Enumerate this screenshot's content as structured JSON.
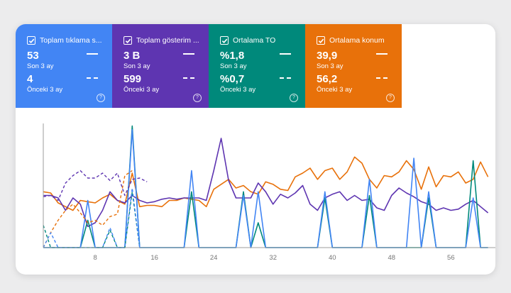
{
  "cards": [
    {
      "title": "Toplam tıklama s...",
      "current_value": "53",
      "current_period": "Son 3 ay",
      "previous_value": "4",
      "previous_period": "Önceki 3 ay",
      "color": "#4285f4"
    },
    {
      "title": "Toplam gösterim ...",
      "current_value": "3 B",
      "current_period": "Son 3 ay",
      "previous_value": "599",
      "previous_period": "Önceki 3 ay",
      "color": "#5e35b1"
    },
    {
      "title": "Ortalama TO",
      "current_value": "%1,8",
      "current_period": "Son 3 ay",
      "previous_value": "%0,7",
      "previous_period": "Önceki 3 ay",
      "color": "#00897b"
    },
    {
      "title": "Ortalama konum",
      "current_value": "39,9",
      "current_period": "Son 3 ay",
      "previous_value": "56,2",
      "previous_period": "Önceki 3 ay",
      "color": "#e8710a"
    }
  ],
  "help_glyph": "?",
  "chart_data": {
    "type": "line",
    "x_ticks": [
      "8",
      "16",
      "24",
      "32",
      "40",
      "48",
      "56"
    ],
    "x_range": [
      1,
      62
    ],
    "y_range": [
      0,
      100
    ],
    "series": [
      {
        "metric": "position",
        "style": "solid",
        "color": "#e8710a",
        "x_start": 1,
        "values": [
          45,
          44,
          36,
          33,
          30,
          38,
          37,
          36,
          40,
          43,
          38,
          35,
          60,
          33,
          34,
          34,
          33,
          38,
          38,
          40,
          39,
          38,
          33,
          47,
          51,
          55,
          48,
          50,
          45,
          43,
          53,
          51,
          47,
          46,
          57,
          60,
          64,
          55,
          62,
          64,
          55,
          61,
          73,
          68,
          55,
          48,
          58,
          57,
          61,
          70,
          63,
          47,
          65,
          49,
          58,
          57,
          61,
          52,
          55,
          69,
          57
        ]
      },
      {
        "metric": "impressions",
        "style": "solid",
        "color": "#5e35b1",
        "x_start": 1,
        "values": [
          42,
          42,
          40,
          30,
          40,
          35,
          17,
          20,
          30,
          45,
          38,
          36,
          42,
          38,
          36,
          37,
          39,
          40,
          39,
          40,
          40,
          40,
          38,
          62,
          88,
          54,
          40,
          40,
          40,
          52,
          45,
          35,
          43,
          40,
          44,
          50,
          35,
          30,
          40,
          43,
          45,
          38,
          42,
          38,
          39,
          32,
          30,
          42,
          48,
          44,
          41,
          37,
          35,
          30,
          32,
          30,
          31,
          35,
          38,
          33,
          28
        ]
      },
      {
        "metric": "ctr",
        "style": "solid",
        "color": "#00897b",
        "x_start": 1,
        "values": [
          0,
          0,
          0,
          0,
          0,
          0,
          22,
          0,
          0,
          0,
          0,
          0,
          98,
          0,
          0,
          0,
          0,
          0,
          0,
          0,
          45,
          0,
          0,
          0,
          0,
          0,
          0,
          45,
          0,
          20,
          0,
          0,
          0,
          0,
          0,
          0,
          0,
          0,
          40,
          0,
          0,
          0,
          0,
          0,
          42,
          0,
          0,
          0,
          0,
          0,
          0,
          0,
          40,
          0,
          0,
          0,
          0,
          0,
          70,
          0,
          0
        ]
      },
      {
        "metric": "clicks",
        "style": "solid",
        "color": "#4285f4",
        "x_start": 1,
        "values": [
          0,
          0,
          0,
          0,
          0,
          0,
          38,
          0,
          0,
          0,
          0,
          0,
          95,
          0,
          0,
          0,
          0,
          0,
          0,
          0,
          62,
          0,
          0,
          0,
          0,
          0,
          0,
          42,
          0,
          45,
          0,
          0,
          0,
          0,
          0,
          0,
          0,
          0,
          45,
          0,
          0,
          0,
          0,
          0,
          55,
          0,
          0,
          0,
          0,
          0,
          72,
          0,
          45,
          0,
          0,
          0,
          0,
          0,
          40,
          0,
          0
        ]
      },
      {
        "metric": "position",
        "style": "dashed",
        "color": "#e8710a",
        "x_start": 1,
        "values": [
          0,
          12,
          22,
          30,
          35,
          28,
          20,
          22,
          18,
          25,
          27,
          58,
          62
        ]
      },
      {
        "metric": "impressions",
        "style": "dashed",
        "color": "#5e35b1",
        "x_start": 1,
        "values": [
          41,
          42,
          38,
          52,
          58,
          62,
          56,
          56,
          60,
          54,
          60,
          42,
          55,
          56,
          53
        ]
      },
      {
        "metric": "ctr",
        "style": "dashed",
        "color": "#00897b",
        "x_start": 1,
        "values": [
          18,
          0,
          0,
          0,
          0,
          0,
          0,
          0,
          0,
          14,
          0,
          0,
          45,
          0
        ]
      },
      {
        "metric": "clicks",
        "style": "dashed",
        "color": "#4285f4",
        "x_start": 1,
        "values": [
          0,
          12,
          0,
          0,
          0,
          0,
          0,
          0,
          0,
          16,
          0,
          0,
          48,
          0
        ]
      }
    ]
  }
}
